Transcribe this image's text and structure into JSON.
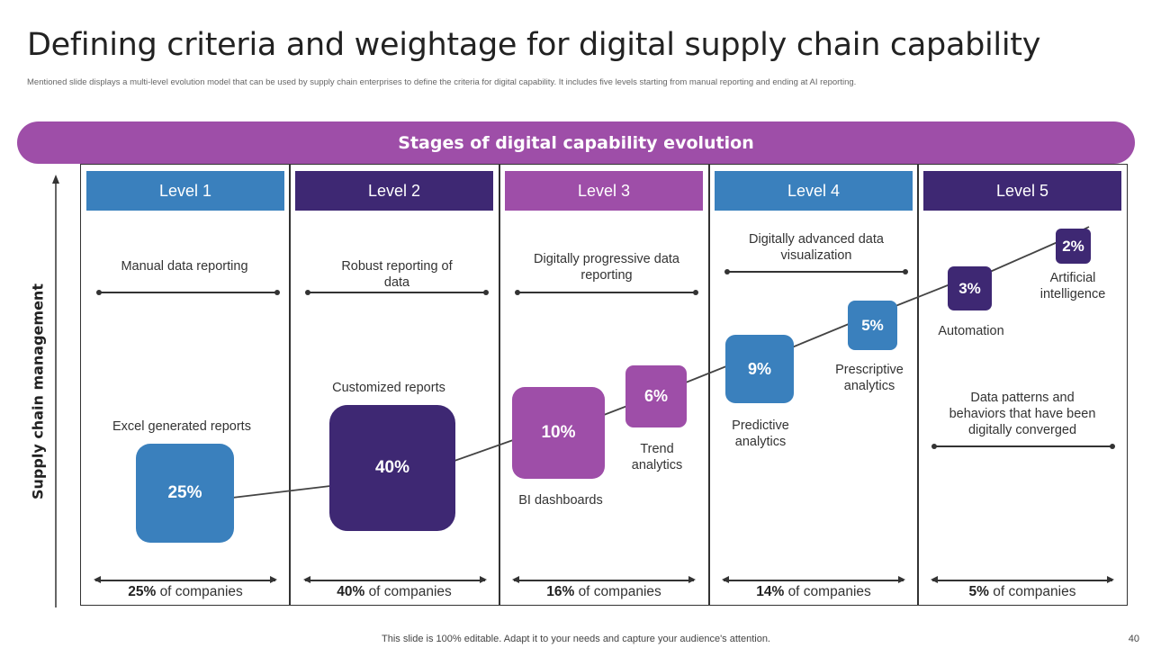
{
  "title": "Defining criteria and weightage for digital supply chain capability",
  "subtitle": "Mentioned slide displays a multi-level evolution model that can be used by supply chain enterprises to define the criteria for digital capability. It includes five levels starting from manual reporting and ending at AI reporting.",
  "banner": "Stages of digital capability evolution",
  "axis_label": "Supply chain management",
  "colors": {
    "blue": "#3a80bd",
    "dark_purple": "#3e2873",
    "purple": "#9e4ea8",
    "banner": "#9e4ea8"
  },
  "levels": [
    {
      "label": "Level 1",
      "stage": "Manual data reporting",
      "percent": "25%",
      "companies_text": "of companies"
    },
    {
      "label": "Level 2",
      "stage": "Robust reporting of data",
      "percent": "40%",
      "companies_text": "of companies"
    },
    {
      "label": "Level 3",
      "stage": "Digitally progressive data reporting",
      "percent": "16%",
      "companies_text": "of companies"
    },
    {
      "label": "Level 4",
      "stage": "Digitally advanced data visualization",
      "percent": "14%",
      "companies_text": "of companies"
    },
    {
      "label": "Level 5",
      "stage": "Data patterns and behaviors that have been digitally converged",
      "percent": "5%",
      "companies_text": "of companies"
    }
  ],
  "tools": [
    {
      "name": "Excel generated reports",
      "value": "25%"
    },
    {
      "name": "Customized reports",
      "value": "40%"
    },
    {
      "name": "BI dashboards",
      "value": "10%"
    },
    {
      "name": "Trend analytics",
      "value": "6%"
    },
    {
      "name": "Predictive analytics",
      "value": "9%"
    },
    {
      "name": "Prescriptive analytics",
      "value": "5%"
    },
    {
      "name": "Automation",
      "value": "3%"
    },
    {
      "name": "Artificial intelligence",
      "value": "2%"
    }
  ],
  "footer": "This slide is 100% editable. Adapt it to your needs and capture your audience's attention.",
  "page_number": "40"
}
